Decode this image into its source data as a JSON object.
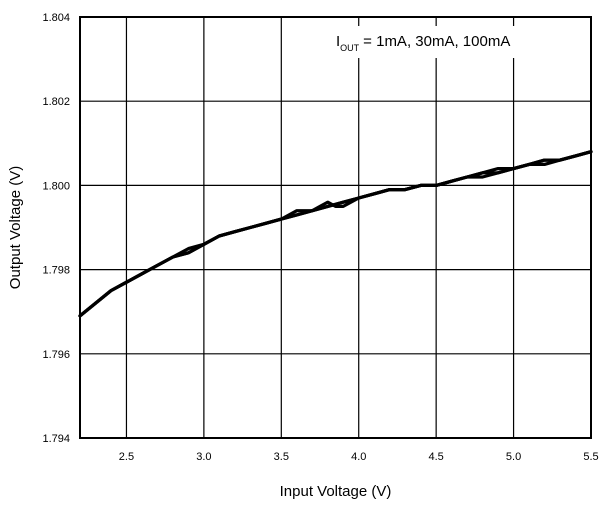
{
  "chart_data": {
    "type": "line",
    "title": "",
    "xlabel": "Input Voltage (V)",
    "ylabel": "Output Voltage (V)",
    "xlim": [
      2.2,
      5.5
    ],
    "ylim": [
      1.794,
      1.804
    ],
    "grid": true,
    "x_ticks": [
      2.5,
      3.0,
      3.5,
      4.0,
      4.5,
      5.0,
      5.5
    ],
    "x_tick_labels": [
      "2.5",
      "3.0",
      "3.5",
      "4.0",
      "4.5",
      "5.0",
      "5.5"
    ],
    "y_ticks": [
      1.794,
      1.796,
      1.798,
      1.8,
      1.802,
      1.804
    ],
    "y_tick_labels": [
      "1.794",
      "1.796",
      "1.798",
      "1.800",
      "1.802",
      "1.804"
    ],
    "annotation": {
      "prefix": "I",
      "subscript": "OUT",
      "text": "= 1mA, 30mA, 100mA"
    },
    "series": [
      {
        "x": [
          2.2,
          2.3,
          2.4,
          2.5,
          2.6,
          2.7,
          2.8,
          2.9,
          3.0,
          3.1,
          3.2,
          3.3,
          3.4,
          3.5,
          3.6,
          3.7,
          3.8,
          3.9,
          4.0,
          4.1,
          4.2,
          4.3,
          4.4,
          4.5,
          4.6,
          4.7,
          4.8,
          4.9,
          5.0,
          5.1,
          5.2,
          5.3,
          5.4,
          5.5
        ],
        "values": [
          1.7969,
          1.7972,
          1.7975,
          1.7977,
          1.7979,
          1.7981,
          1.7983,
          1.7984,
          1.7986,
          1.7988,
          1.7989,
          1.799,
          1.7991,
          1.7992,
          1.7993,
          1.7994,
          1.7995,
          1.7996,
          1.7997,
          1.7998,
          1.7999,
          1.7999,
          1.8,
          1.8,
          1.8001,
          1.8002,
          1.8003,
          1.8004,
          1.8004,
          1.8005,
          1.8006,
          1.8006,
          1.8007,
          1.8008
        ]
      },
      {
        "x": [
          2.2,
          2.3,
          2.4,
          2.5,
          2.6,
          2.7,
          2.8,
          2.9,
          3.0,
          3.1,
          3.2,
          3.3,
          3.4,
          3.5,
          3.6,
          3.7,
          3.8,
          3.9,
          4.0,
          4.1,
          4.2,
          4.3,
          4.4,
          4.5,
          4.6,
          4.7,
          4.8,
          4.9,
          5.0,
          5.1,
          5.2,
          5.3,
          5.4,
          5.5
        ],
        "values": [
          1.7969,
          1.7972,
          1.7975,
          1.7977,
          1.7979,
          1.7981,
          1.7983,
          1.7985,
          1.7986,
          1.7988,
          1.7989,
          1.799,
          1.7991,
          1.7992,
          1.7994,
          1.7994,
          1.7995,
          1.7996,
          1.7997,
          1.7998,
          1.7999,
          1.7999,
          1.8,
          1.8,
          1.8001,
          1.8002,
          1.8002,
          1.8003,
          1.8004,
          1.8005,
          1.8005,
          1.8006,
          1.8007,
          1.8008
        ]
      },
      {
        "x": [
          2.2,
          2.3,
          2.4,
          2.5,
          2.6,
          2.7,
          2.8,
          2.9,
          3.0,
          3.1,
          3.2,
          3.3,
          3.4,
          3.5,
          3.6,
          3.7,
          3.75,
          3.8,
          3.85,
          3.9,
          4.0,
          4.1,
          4.2,
          4.3,
          4.4,
          4.5,
          4.6,
          4.7,
          4.8,
          4.9,
          5.0,
          5.1,
          5.2,
          5.3,
          5.4,
          5.5
        ],
        "values": [
          1.7969,
          1.7972,
          1.7975,
          1.7977,
          1.7979,
          1.7981,
          1.7983,
          1.7984,
          1.7986,
          1.7988,
          1.7989,
          1.799,
          1.7991,
          1.7992,
          1.7993,
          1.7994,
          1.7995,
          1.7996,
          1.7995,
          1.7995,
          1.7997,
          1.7998,
          1.7999,
          1.7999,
          1.8,
          1.8,
          1.8001,
          1.8002,
          1.8003,
          1.8003,
          1.8004,
          1.8005,
          1.8006,
          1.8006,
          1.8007,
          1.8008
        ]
      }
    ]
  }
}
